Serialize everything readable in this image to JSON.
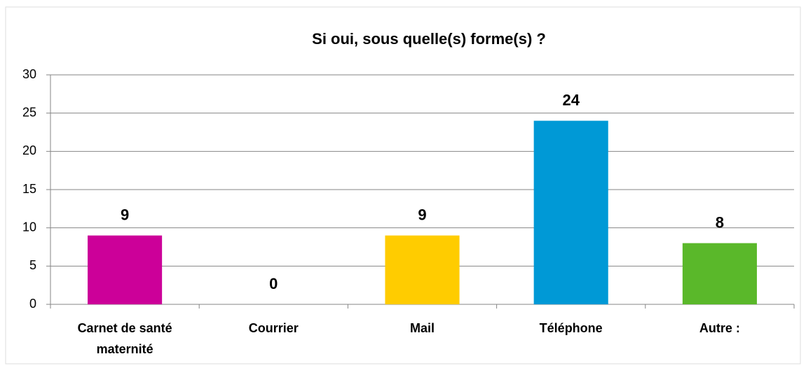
{
  "chart_data": {
    "type": "bar",
    "title": "Si oui, sous quelle(s) forme(s) ?",
    "categories": [
      "Carnet de santé maternité",
      "Courrier",
      "Mail",
      "Téléphone",
      "Autre :"
    ],
    "values": [
      9,
      0,
      9,
      24,
      8
    ],
    "colors": [
      "#cc0099",
      null,
      "#ffcc00",
      "#0099d6",
      "#5ab82a"
    ],
    "ylim": [
      0,
      30
    ],
    "yticks": [
      0,
      5,
      10,
      15,
      20,
      25,
      30
    ],
    "grid": true
  }
}
